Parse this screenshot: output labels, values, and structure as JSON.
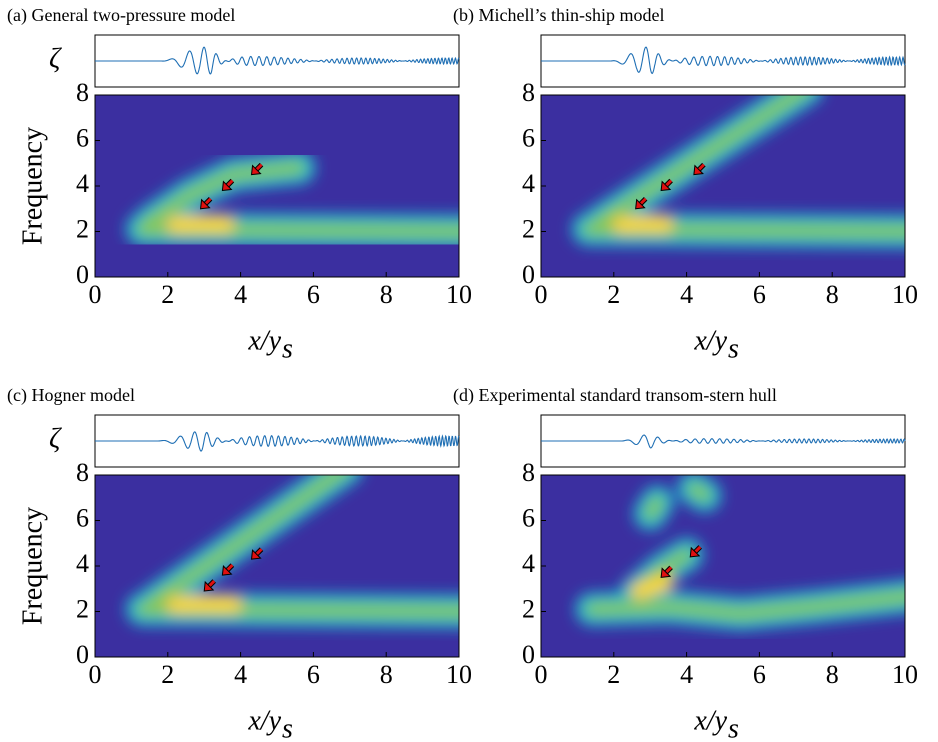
{
  "chart_data": [
    {
      "type": "heatmap",
      "title": "(a) General two-pressure model",
      "wave_label": "ζ",
      "ylabel": "Frequency",
      "xlabel": "x/y",
      "xlabel_subscript": "s",
      "xlim": [
        0,
        10
      ],
      "xticks": [
        0,
        2,
        4,
        6,
        8,
        10
      ],
      "ylim": [
        0,
        8
      ],
      "yticks": [
        0,
        2,
        4,
        6,
        8
      ]
    },
    {
      "type": "heatmap",
      "title": "(b) Michell’s thin-ship model",
      "xlabel": "x/y",
      "xlabel_subscript": "s",
      "xlim": [
        0,
        10
      ],
      "xticks": [
        0,
        2,
        4,
        6,
        8,
        10
      ],
      "ylim": [
        0,
        8
      ],
      "yticks": [
        0,
        2,
        4,
        6,
        8
      ]
    },
    {
      "type": "heatmap",
      "title": "(c) Hogner model",
      "wave_label": "ζ",
      "ylabel": "Frequency",
      "xlabel": "x/y",
      "xlabel_subscript": "s",
      "xlim": [
        0,
        10
      ],
      "xticks": [
        0,
        2,
        4,
        6,
        8,
        10
      ],
      "ylim": [
        0,
        8
      ],
      "yticks": [
        0,
        2,
        4,
        6,
        8
      ]
    },
    {
      "type": "heatmap",
      "title": "(d) Experimental standard transom-stern hull",
      "xlabel": "x/y",
      "xlabel_subscript": "s",
      "xlim": [
        0,
        10
      ],
      "xticks": [
        0,
        2,
        4,
        6,
        8,
        10
      ],
      "ylim": [
        0,
        8
      ],
      "yticks": [
        0,
        2,
        4,
        6,
        8
      ]
    }
  ]
}
